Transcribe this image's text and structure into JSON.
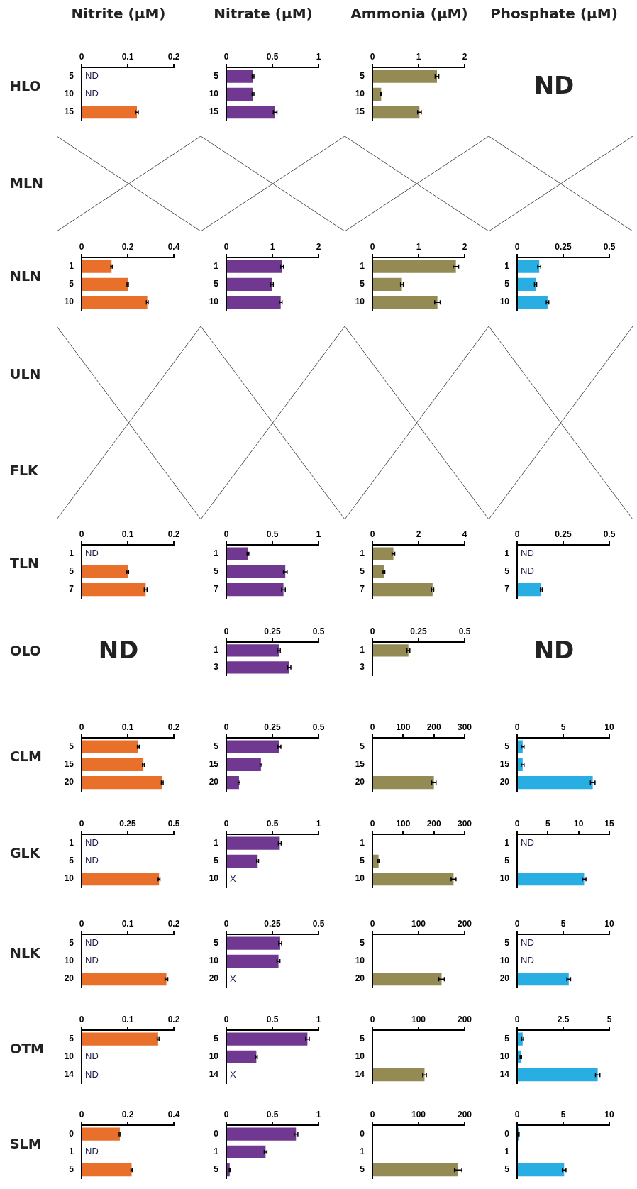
{
  "chart_data": [
    {
      "type": "bar",
      "orientation": "horizontal",
      "title": "Nitrite (µM)",
      "ylabel": "HLO",
      "categories": [
        "5",
        "10",
        "15"
      ],
      "values": [
        null,
        null,
        0.12
      ],
      "value_labels": [
        "ND",
        "ND",
        null
      ],
      "errors": [
        null,
        null,
        0.003
      ],
      "color": "#e8702a",
      "xlim": [
        0,
        0.2
      ],
      "xticks": [
        0,
        0.1,
        0.2
      ]
    },
    {
      "type": "bar",
      "orientation": "horizontal",
      "title": "Nitrate (µM)",
      "categories": [
        "5",
        "10",
        "15"
      ],
      "values": [
        0.29,
        0.29,
        0.53
      ],
      "errors": [
        0.01,
        0.01,
        0.02
      ],
      "color": "#713891",
      "xlim": [
        0,
        1
      ],
      "xticks": [
        0,
        0.5,
        1
      ]
    },
    {
      "type": "bar",
      "orientation": "horizontal",
      "title": "Ammonia (µM)",
      "categories": [
        "5",
        "10",
        "15"
      ],
      "values": [
        1.4,
        0.19,
        1.02
      ],
      "errors": [
        0.04,
        0.01,
        0.04
      ],
      "color": "#948b54",
      "xlim": [
        0,
        2
      ],
      "xticks": [
        0,
        1,
        2
      ]
    },
    {
      "type": "other",
      "title": "Phosphate (µM)",
      "annotations": [
        "ND"
      ]
    },
    {
      "type": "other",
      "ylabel": "MLN"
    },
    {
      "type": "bar",
      "orientation": "horizontal",
      "ylabel": "NLN",
      "categories": [
        "1",
        "5",
        "10"
      ],
      "values": [
        0.13,
        0.2,
        0.285
      ],
      "errors": [
        0.003,
        0.003,
        0.004
      ],
      "color": "#e8702a",
      "xlim": [
        0,
        0.4
      ],
      "xticks": [
        0,
        0.2,
        0.4
      ]
    },
    {
      "type": "bar",
      "orientation": "horizontal",
      "categories": [
        "1",
        "5",
        "10"
      ],
      "values": [
        1.21,
        0.99,
        1.18
      ],
      "errors": [
        0.03,
        0.03,
        0.03
      ],
      "color": "#713891",
      "xlim": [
        0,
        2
      ],
      "xticks": [
        0,
        1,
        2
      ]
    },
    {
      "type": "bar",
      "orientation": "horizontal",
      "categories": [
        "1",
        "5",
        "10"
      ],
      "values": [
        1.81,
        0.64,
        1.41
      ],
      "errors": [
        0.06,
        0.03,
        0.06
      ],
      "color": "#948b54",
      "xlim": [
        0,
        2
      ],
      "xticks": [
        0,
        1,
        2
      ]
    },
    {
      "type": "bar",
      "orientation": "horizontal",
      "categories": [
        "1",
        "5",
        "10"
      ],
      "values": [
        0.12,
        0.1,
        0.165
      ],
      "errors": [
        0.008,
        0.006,
        0.007
      ],
      "color": "#29aee3",
      "xlim": [
        0,
        0.5
      ],
      "xticks": [
        0,
        0.25,
        0.5
      ]
    },
    {
      "type": "other",
      "ylabel": "ULN"
    },
    {
      "type": "other",
      "ylabel": "FLK"
    },
    {
      "type": "bar",
      "orientation": "horizontal",
      "ylabel": "TLN",
      "categories": [
        "1",
        "5",
        "7"
      ],
      "values": [
        null,
        0.1,
        0.139
      ],
      "value_labels": [
        "ND",
        null,
        null
      ],
      "errors": [
        null,
        0.002,
        0.003
      ],
      "color": "#e8702a",
      "xlim": [
        0,
        0.2
      ],
      "xticks": [
        0,
        0.1,
        0.2
      ]
    },
    {
      "type": "bar",
      "orientation": "horizontal",
      "categories": [
        "1",
        "5",
        "7"
      ],
      "values": [
        0.235,
        0.64,
        0.62
      ],
      "errors": [
        0.01,
        0.02,
        0.02
      ],
      "color": "#713891",
      "xlim": [
        0,
        1
      ],
      "xticks": [
        0,
        0.5,
        1
      ]
    },
    {
      "type": "bar",
      "orientation": "horizontal",
      "categories": [
        "1",
        "5",
        "7"
      ],
      "values": [
        0.91,
        0.5,
        2.61
      ],
      "errors": [
        0.06,
        0.04,
        0.05
      ],
      "color": "#948b54",
      "xlim": [
        0,
        4
      ],
      "xticks": [
        0,
        2,
        4
      ]
    },
    {
      "type": "bar",
      "orientation": "horizontal",
      "categories": [
        "1",
        "5",
        "7"
      ],
      "values": [
        null,
        null,
        0.131
      ],
      "value_labels": [
        "ND",
        "ND",
        null
      ],
      "errors": [
        null,
        null,
        0.005
      ],
      "color": "#29aee3",
      "xlim": [
        0,
        0.5
      ],
      "xticks": [
        0,
        0.25,
        0.5
      ]
    },
    {
      "type": "other",
      "ylabel": "OLO",
      "annotations": [
        "ND"
      ]
    },
    {
      "type": "bar",
      "orientation": "horizontal",
      "categories": [
        "1",
        "3"
      ],
      "values": [
        0.285,
        0.341
      ],
      "errors": [
        0.008,
        0.009
      ],
      "color": "#713891",
      "xlim": [
        0,
        0.5
      ],
      "xticks": [
        0,
        0.25,
        0.5
      ]
    },
    {
      "type": "bar",
      "orientation": "horizontal",
      "categories": [
        "1",
        "3"
      ],
      "values": [
        0.195,
        null
      ],
      "errors": [
        0.008,
        null
      ],
      "color": "#948b54",
      "xlim": [
        0,
        0.5
      ],
      "xticks": [
        0,
        0.25,
        0.5
      ]
    },
    {
      "type": "other",
      "annotations": [
        "ND"
      ]
    },
    {
      "type": "bar",
      "orientation": "horizontal",
      "ylabel": "CLM",
      "categories": [
        "5",
        "15",
        "20"
      ],
      "values": [
        0.123,
        0.134,
        0.175
      ],
      "errors": [
        0.002,
        0.002,
        0.002
      ],
      "color": "#e8702a",
      "xlim": [
        0,
        0.2
      ],
      "xticks": [
        0,
        0.1,
        0.2
      ]
    },
    {
      "type": "bar",
      "orientation": "horizontal",
      "categories": [
        "5",
        "15",
        "20"
      ],
      "values": [
        0.288,
        0.188,
        0.069
      ],
      "errors": [
        0.008,
        0.005,
        0.005
      ],
      "color": "#713891",
      "xlim": [
        0,
        0.5
      ],
      "xticks": [
        0,
        0.25,
        0.5
      ]
    },
    {
      "type": "bar",
      "orientation": "horizontal",
      "categories": [
        "5",
        "15",
        "20"
      ],
      "values": [
        null,
        null,
        200
      ],
      "errors": [
        null,
        null,
        7
      ],
      "color": "#948b54",
      "xlim": [
        0,
        300
      ],
      "xticks": [
        0,
        100,
        200,
        300
      ]
    },
    {
      "type": "bar",
      "orientation": "horizontal",
      "categories": [
        "5",
        "15",
        "20"
      ],
      "values": [
        0.6,
        0.6,
        8.2
      ],
      "errors": [
        0.15,
        0.15,
        0.25
      ],
      "color": "#29aee3",
      "xlim": [
        0,
        10
      ],
      "xticks": [
        0,
        5,
        10
      ]
    },
    {
      "type": "bar",
      "orientation": "horizontal",
      "ylabel": "GLK",
      "categories": [
        "1",
        "5",
        "10"
      ],
      "values": [
        null,
        null,
        0.42
      ],
      "value_labels": [
        "ND",
        "ND",
        null
      ],
      "errors": [
        null,
        null,
        0.005
      ],
      "color": "#e8702a",
      "xlim": [
        0,
        0.5
      ],
      "xticks": [
        0,
        0.25,
        0.5
      ]
    },
    {
      "type": "bar",
      "orientation": "horizontal",
      "categories": [
        "1",
        "5",
        "10"
      ],
      "values": [
        0.58,
        0.34,
        null
      ],
      "value_labels": [
        null,
        null,
        "X"
      ],
      "errors": [
        0.015,
        0.01,
        null
      ],
      "color": "#713891",
      "xlim": [
        0,
        1
      ],
      "xticks": [
        0,
        0.5,
        1
      ]
    },
    {
      "type": "bar",
      "orientation": "horizontal",
      "categories": [
        "1",
        "5",
        "10"
      ],
      "values": [
        null,
        20,
        264
      ],
      "errors": [
        null,
        2,
        8
      ],
      "color": "#948b54",
      "xlim": [
        0,
        300
      ],
      "xticks": [
        0,
        100,
        200,
        300
      ]
    },
    {
      "type": "bar",
      "orientation": "horizontal",
      "categories": [
        "1",
        "5",
        "10"
      ],
      "values": [
        null,
        null,
        10.9
      ],
      "value_labels": [
        "ND",
        null,
        null
      ],
      "errors": [
        null,
        null,
        0.3
      ],
      "color": "#29aee3",
      "xlim": [
        0,
        15
      ],
      "xticks": [
        0,
        5,
        10,
        15
      ]
    },
    {
      "type": "bar",
      "orientation": "horizontal",
      "ylabel": "NLK",
      "categories": [
        "5",
        "10",
        "20"
      ],
      "values": [
        null,
        null,
        0.184
      ],
      "value_labels": [
        "ND",
        "ND",
        null
      ],
      "errors": [
        null,
        null,
        0.003
      ],
      "color": "#e8702a",
      "xlim": [
        0,
        0.2
      ],
      "xticks": [
        0,
        0.1,
        0.2
      ]
    },
    {
      "type": "bar",
      "orientation": "horizontal",
      "categories": [
        "5",
        "10",
        "20"
      ],
      "values": [
        0.292,
        0.283,
        null
      ],
      "value_labels": [
        null,
        null,
        "X"
      ],
      "errors": [
        0.008,
        0.008,
        null
      ],
      "color": "#713891",
      "xlim": [
        0,
        0.5
      ],
      "xticks": [
        0,
        0.25,
        0.5
      ]
    },
    {
      "type": "bar",
      "orientation": "horizontal",
      "categories": [
        "5",
        "10",
        "20"
      ],
      "values": [
        null,
        null,
        150
      ],
      "errors": [
        null,
        null,
        6
      ],
      "color": "#948b54",
      "xlim": [
        0,
        200
      ],
      "xticks": [
        0,
        100,
        200
      ]
    },
    {
      "type": "bar",
      "orientation": "horizontal",
      "categories": [
        "5",
        "10",
        "20"
      ],
      "values": [
        null,
        null,
        5.6
      ],
      "value_labels": [
        "ND",
        "ND",
        null
      ],
      "errors": [
        null,
        null,
        0.2
      ],
      "color": "#29aee3",
      "xlim": [
        0,
        10
      ],
      "xticks": [
        0,
        5,
        10
      ]
    },
    {
      "type": "bar",
      "orientation": "horizontal",
      "ylabel": "OTM",
      "categories": [
        "5",
        "10",
        "14"
      ],
      "values": [
        0.166,
        null,
        null
      ],
      "value_labels": [
        null,
        "ND",
        "ND"
      ],
      "errors": [
        0.002,
        null,
        null
      ],
      "color": "#e8702a",
      "xlim": [
        0,
        0.2
      ],
      "xticks": [
        0,
        0.1,
        0.2
      ]
    },
    {
      "type": "bar",
      "orientation": "horizontal",
      "categories": [
        "5",
        "10",
        "14"
      ],
      "values": [
        0.88,
        0.326,
        null
      ],
      "value_labels": [
        null,
        null,
        "X"
      ],
      "errors": [
        0.02,
        0.01,
        null
      ],
      "color": "#713891",
      "xlim": [
        0,
        1
      ],
      "xticks": [
        0,
        0.5,
        1
      ]
    },
    {
      "type": "bar",
      "orientation": "horizontal",
      "categories": [
        "5",
        "10",
        "14"
      ],
      "values": [
        null,
        null,
        113
      ],
      "errors": [
        null,
        null,
        4
      ],
      "color": "#948b54",
      "xlim": [
        0,
        200
      ],
      "xticks": [
        0,
        100,
        200
      ]
    },
    {
      "type": "bar",
      "orientation": "horizontal",
      "categories": [
        "5",
        "10",
        "14"
      ],
      "values": [
        0.3,
        0.2,
        4.37
      ],
      "errors": [
        0.05,
        0.04,
        0.12
      ],
      "color": "#29aee3",
      "xlim": [
        0,
        5
      ],
      "xticks": [
        0,
        2.5,
        5
      ]
    },
    {
      "type": "bar",
      "orientation": "horizontal",
      "ylabel": "SLM",
      "categories": [
        "0",
        "1",
        "5"
      ],
      "values": [
        0.166,
        null,
        0.217
      ],
      "value_labels": [
        null,
        "ND",
        null
      ],
      "errors": [
        0.003,
        null,
        0.003
      ],
      "color": "#e8702a",
      "xlim": [
        0,
        0.4
      ],
      "xticks": [
        0,
        0.2,
        0.4
      ]
    },
    {
      "type": "bar",
      "orientation": "horizontal",
      "categories": [
        "0",
        "1",
        "5"
      ],
      "values": [
        0.756,
        0.426,
        0.037
      ],
      "errors": [
        0.02,
        0.015,
        0.005
      ],
      "color": "#713891",
      "xlim": [
        0,
        1
      ],
      "xticks": [
        0,
        0.5,
        1
      ]
    },
    {
      "type": "bar",
      "orientation": "horizontal",
      "categories": [
        "0",
        "1",
        "5"
      ],
      "values": [
        null,
        null,
        186
      ],
      "errors": [
        null,
        null,
        8
      ],
      "color": "#948b54",
      "xlim": [
        0,
        200
      ],
      "xticks": [
        0,
        100,
        200
      ]
    },
    {
      "type": "bar",
      "orientation": "horizontal",
      "categories": [
        "0",
        "1",
        "5"
      ],
      "values": [
        0.17,
        null,
        5.1
      ],
      "errors": [
        0.05,
        null,
        0.2
      ],
      "color": "#29aee3",
      "xlim": [
        0,
        10
      ],
      "xticks": [
        0,
        5,
        10
      ]
    }
  ]
}
